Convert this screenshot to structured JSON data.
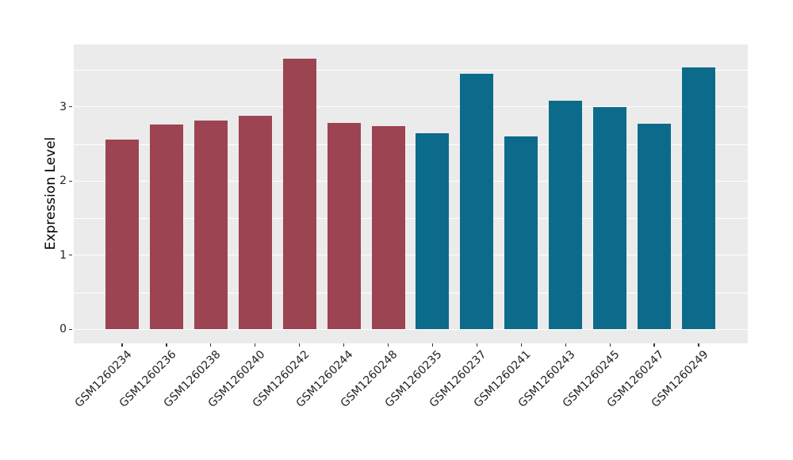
{
  "chart_data": {
    "type": "bar",
    "title": "",
    "xlabel": "",
    "ylabel": "Expression Level",
    "categories": [
      "GSM1260234",
      "GSM1260236",
      "GSM1260238",
      "GSM1260240",
      "GSM1260242",
      "GSM1260244",
      "GSM1260248",
      "GSM1260235",
      "GSM1260237",
      "GSM1260241",
      "GSM1260243",
      "GSM1260245",
      "GSM1260247",
      "GSM1260249"
    ],
    "values": [
      2.56,
      2.76,
      2.82,
      2.88,
      3.65,
      2.78,
      2.74,
      2.65,
      3.45,
      2.6,
      3.08,
      3.0,
      2.77,
      3.53
    ],
    "bar_groups": [
      "maroon",
      "maroon",
      "maroon",
      "maroon",
      "maroon",
      "maroon",
      "maroon",
      "teal",
      "teal",
      "teal",
      "teal",
      "teal",
      "teal",
      "teal"
    ],
    "series": [
      {
        "name": "maroon-group",
        "color": "#9C4452",
        "categories": [
          "GSM1260234",
          "GSM1260236",
          "GSM1260238",
          "GSM1260240",
          "GSM1260242",
          "GSM1260244",
          "GSM1260248"
        ],
        "values": [
          2.56,
          2.76,
          2.82,
          2.88,
          3.65,
          2.78,
          2.74
        ]
      },
      {
        "name": "teal-group",
        "color": "#0C6B8B",
        "categories": [
          "GSM1260235",
          "GSM1260237",
          "GSM1260241",
          "GSM1260243",
          "GSM1260245",
          "GSM1260247",
          "GSM1260249"
        ],
        "values": [
          2.65,
          3.45,
          2.6,
          3.08,
          3.0,
          2.77,
          3.53
        ]
      }
    ],
    "group_colors": {
      "maroon": "#9C4452",
      "teal": "#0C6B8B"
    },
    "yticks": [
      0,
      1,
      2,
      3
    ],
    "yticks_minor": [
      0.5,
      1.5,
      2.5,
      3.5
    ],
    "ylim": [
      -0.18,
      3.84
    ],
    "grid": "on",
    "legend": "none",
    "panel_background": "#EBEBEB",
    "grid_color": "#FFFFFF",
    "axis_text_color": "#222222"
  }
}
